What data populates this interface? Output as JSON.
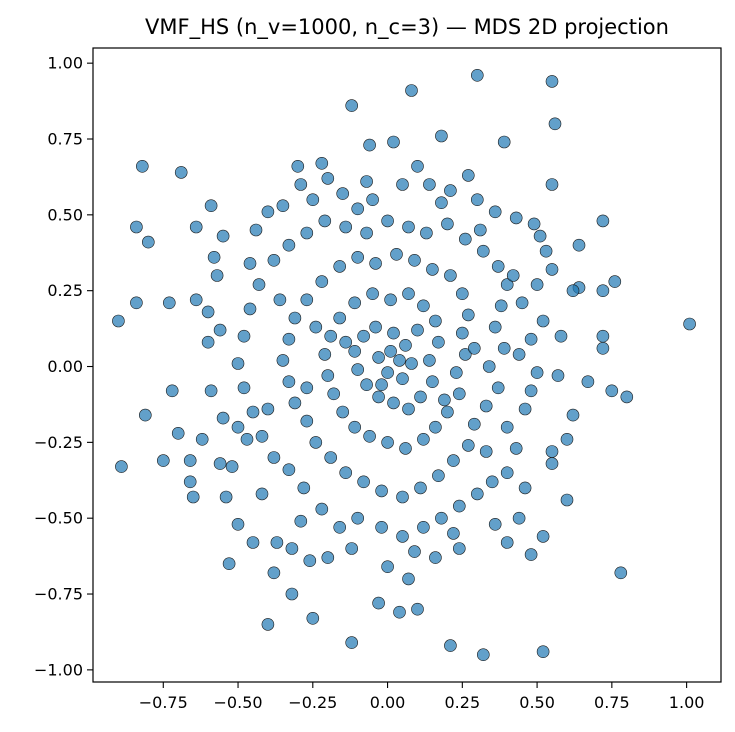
{
  "chart_data": {
    "type": "scatter",
    "title": "VMF_HS (n_v=1000, n_c=3) — MDS 2D projection",
    "xlabel": "",
    "ylabel": "",
    "xlim": [
      -0.985,
      1.115
    ],
    "ylim": [
      -1.04,
      1.05
    ],
    "xticks": [
      -0.75,
      -0.5,
      -0.25,
      0.0,
      0.25,
      0.5,
      0.75,
      1.0
    ],
    "xtick_labels": [
      "−0.75",
      "−0.50",
      "−0.25",
      "0.00",
      "0.25",
      "0.50",
      "0.75",
      "1.00"
    ],
    "yticks": [
      -1.0,
      -0.75,
      -0.5,
      -0.25,
      0.0,
      0.25,
      0.5,
      0.75,
      1.0
    ],
    "ytick_labels": [
      "−1.00",
      "−0.75",
      "−0.50",
      "−0.25",
      "0.00",
      "0.25",
      "0.50",
      "0.75",
      "1.00"
    ],
    "grid": false,
    "legend": "none",
    "marker_color": "#1f77b4",
    "points": [
      [
        0.3,
        0.96
      ],
      [
        0.55,
        0.94
      ],
      [
        0.08,
        0.91
      ],
      [
        -0.12,
        0.86
      ],
      [
        0.56,
        0.8
      ],
      [
        -0.82,
        0.66
      ],
      [
        -0.69,
        0.64
      ],
      [
        0.18,
        0.76
      ],
      [
        0.39,
        0.74
      ],
      [
        -0.06,
        0.73
      ],
      [
        0.02,
        0.74
      ],
      [
        0.72,
        0.48
      ],
      [
        -0.3,
        0.66
      ],
      [
        -0.22,
        0.67
      ],
      [
        -0.59,
        0.53
      ],
      [
        -0.84,
        0.46
      ],
      [
        -0.8,
        0.41
      ],
      [
        0.55,
        0.6
      ],
      [
        -0.9,
        0.15
      ],
      [
        -0.84,
        0.21
      ],
      [
        -0.73,
        0.21
      ],
      [
        -0.64,
        0.22
      ],
      [
        -0.89,
        -0.33
      ],
      [
        -0.81,
        -0.16
      ],
      [
        -0.72,
        -0.08
      ],
      [
        -0.7,
        -0.22
      ],
      [
        -0.75,
        -0.31
      ],
      [
        -0.65,
        -0.43
      ],
      [
        -0.66,
        -0.31
      ],
      [
        -0.56,
        -0.32
      ],
      [
        -0.54,
        -0.43
      ],
      [
        -0.53,
        -0.65
      ],
      [
        -0.4,
        -0.85
      ],
      [
        -0.32,
        -0.75
      ],
      [
        -0.25,
        -0.83
      ],
      [
        -0.12,
        -0.91
      ],
      [
        -0.03,
        -0.78
      ],
      [
        0.04,
        -0.81
      ],
      [
        0.1,
        -0.8
      ],
      [
        0.21,
        -0.92
      ],
      [
        0.32,
        -0.95
      ],
      [
        0.52,
        -0.94
      ],
      [
        0.78,
        -0.68
      ],
      [
        0.52,
        -0.56
      ],
      [
        0.6,
        -0.44
      ],
      [
        0.75,
        -0.08
      ],
      [
        0.8,
        -0.1
      ],
      [
        0.76,
        0.28
      ],
      [
        1.01,
        0.14
      ],
      [
        0.72,
        0.25
      ],
      [
        0.72,
        0.1
      ],
      [
        0.72,
        0.06
      ],
      [
        0.64,
        0.26
      ],
      [
        0.62,
        0.25
      ],
      [
        0.57,
        -0.03
      ],
      [
        0.62,
        -0.16
      ],
      [
        0.55,
        -0.28
      ],
      [
        0.55,
        -0.32
      ],
      [
        0.48,
        -0.62
      ],
      [
        0.44,
        -0.5
      ],
      [
        0.36,
        -0.52
      ],
      [
        0.24,
        -0.6
      ],
      [
        0.16,
        -0.63
      ],
      [
        0.07,
        -0.7
      ],
      [
        0.0,
        -0.66
      ],
      [
        -0.12,
        -0.6
      ],
      [
        -0.2,
        -0.63
      ],
      [
        -0.26,
        -0.64
      ],
      [
        -0.32,
        -0.6
      ],
      [
        -0.38,
        -0.68
      ],
      [
        -0.45,
        -0.58
      ],
      [
        -0.5,
        -0.52
      ],
      [
        -0.42,
        -0.42
      ],
      [
        -0.47,
        -0.24
      ],
      [
        -0.5,
        -0.2
      ],
      [
        -0.55,
        -0.17
      ],
      [
        -0.59,
        -0.08
      ],
      [
        -0.6,
        0.08
      ],
      [
        -0.6,
        0.18
      ],
      [
        -0.57,
        0.3
      ],
      [
        -0.58,
        0.36
      ],
      [
        -0.55,
        0.43
      ],
      [
        -0.44,
        0.45
      ],
      [
        -0.4,
        0.51
      ],
      [
        -0.35,
        0.53
      ],
      [
        -0.29,
        0.6
      ],
      [
        -0.25,
        0.55
      ],
      [
        -0.15,
        0.57
      ],
      [
        -0.1,
        0.52
      ],
      [
        -0.05,
        0.55
      ],
      [
        0.05,
        0.6
      ],
      [
        0.1,
        0.66
      ],
      [
        0.14,
        0.6
      ],
      [
        0.21,
        0.58
      ],
      [
        0.27,
        0.63
      ],
      [
        0.3,
        0.55
      ],
      [
        0.36,
        0.51
      ],
      [
        0.43,
        0.49
      ],
      [
        0.49,
        0.47
      ],
      [
        0.51,
        0.43
      ],
      [
        0.55,
        0.32
      ],
      [
        0.5,
        0.27
      ],
      [
        0.45,
        0.21
      ],
      [
        0.52,
        0.15
      ],
      [
        0.48,
        0.09
      ],
      [
        0.44,
        0.04
      ],
      [
        0.5,
        -0.02
      ],
      [
        0.48,
        -0.08
      ],
      [
        0.46,
        -0.14
      ],
      [
        0.4,
        -0.2
      ],
      [
        0.43,
        -0.27
      ],
      [
        0.4,
        -0.35
      ],
      [
        0.35,
        -0.38
      ],
      [
        0.3,
        -0.42
      ],
      [
        0.24,
        -0.46
      ],
      [
        0.18,
        -0.5
      ],
      [
        0.12,
        -0.53
      ],
      [
        0.05,
        -0.56
      ],
      [
        -0.02,
        -0.53
      ],
      [
        -0.1,
        -0.5
      ],
      [
        -0.16,
        -0.53
      ],
      [
        -0.22,
        -0.47
      ],
      [
        -0.28,
        -0.4
      ],
      [
        -0.33,
        -0.34
      ],
      [
        -0.38,
        -0.3
      ],
      [
        -0.42,
        -0.23
      ],
      [
        -0.45,
        -0.15
      ],
      [
        -0.48,
        -0.07
      ],
      [
        -0.5,
        0.01
      ],
      [
        -0.48,
        0.1
      ],
      [
        -0.46,
        0.19
      ],
      [
        -0.43,
        0.27
      ],
      [
        -0.38,
        0.35
      ],
      [
        -0.33,
        0.4
      ],
      [
        -0.27,
        0.44
      ],
      [
        -0.21,
        0.48
      ],
      [
        -0.14,
        0.46
      ],
      [
        -0.07,
        0.44
      ],
      [
        0.0,
        0.48
      ],
      [
        0.07,
        0.46
      ],
      [
        0.13,
        0.44
      ],
      [
        0.2,
        0.47
      ],
      [
        0.26,
        0.42
      ],
      [
        0.32,
        0.38
      ],
      [
        0.37,
        0.33
      ],
      [
        0.4,
        0.27
      ],
      [
        0.38,
        0.2
      ],
      [
        0.36,
        0.13
      ],
      [
        0.39,
        0.06
      ],
      [
        0.34,
        0.0
      ],
      [
        0.37,
        -0.07
      ],
      [
        0.33,
        -0.13
      ],
      [
        0.29,
        -0.19
      ],
      [
        0.27,
        -0.26
      ],
      [
        0.22,
        -0.31
      ],
      [
        0.17,
        -0.36
      ],
      [
        0.11,
        -0.4
      ],
      [
        0.05,
        -0.43
      ],
      [
        -0.02,
        -0.41
      ],
      [
        -0.08,
        -0.38
      ],
      [
        -0.14,
        -0.35
      ],
      [
        -0.19,
        -0.3
      ],
      [
        -0.24,
        -0.25
      ],
      [
        -0.27,
        -0.18
      ],
      [
        -0.31,
        -0.12
      ],
      [
        -0.33,
        -0.05
      ],
      [
        -0.35,
        0.02
      ],
      [
        -0.33,
        0.09
      ],
      [
        -0.31,
        0.16
      ],
      [
        -0.27,
        0.22
      ],
      [
        -0.22,
        0.28
      ],
      [
        -0.16,
        0.33
      ],
      [
        -0.1,
        0.36
      ],
      [
        -0.04,
        0.34
      ],
      [
        0.03,
        0.37
      ],
      [
        0.09,
        0.35
      ],
      [
        0.15,
        0.32
      ],
      [
        0.21,
        0.3
      ],
      [
        0.25,
        0.24
      ],
      [
        0.27,
        0.17
      ],
      [
        0.25,
        0.11
      ],
      [
        0.26,
        0.04
      ],
      [
        0.23,
        -0.02
      ],
      [
        0.24,
        -0.09
      ],
      [
        0.2,
        -0.15
      ],
      [
        0.16,
        -0.2
      ],
      [
        0.12,
        -0.24
      ],
      [
        0.06,
        -0.27
      ],
      [
        0.0,
        -0.25
      ],
      [
        -0.06,
        -0.23
      ],
      [
        -0.11,
        -0.2
      ],
      [
        -0.15,
        -0.15
      ],
      [
        -0.18,
        -0.09
      ],
      [
        -0.2,
        -0.03
      ],
      [
        -0.21,
        0.04
      ],
      [
        -0.19,
        0.1
      ],
      [
        -0.16,
        0.16
      ],
      [
        -0.11,
        0.21
      ],
      [
        -0.05,
        0.24
      ],
      [
        0.01,
        0.22
      ],
      [
        0.07,
        0.24
      ],
      [
        0.12,
        0.2
      ],
      [
        0.16,
        0.15
      ],
      [
        0.17,
        0.08
      ],
      [
        0.14,
        0.02
      ],
      [
        0.15,
        -0.05
      ],
      [
        0.11,
        -0.1
      ],
      [
        0.07,
        -0.14
      ],
      [
        0.02,
        -0.12
      ],
      [
        -0.03,
        -0.1
      ],
      [
        -0.07,
        -0.06
      ],
      [
        -0.1,
        -0.01
      ],
      [
        -0.11,
        0.05
      ],
      [
        -0.08,
        0.1
      ],
      [
        -0.04,
        0.13
      ],
      [
        0.02,
        0.11
      ],
      [
        0.06,
        0.07
      ],
      [
        0.08,
        0.01
      ],
      [
        0.05,
        -0.04
      ],
      [
        0.0,
        -0.02
      ],
      [
        -0.03,
        0.03
      ],
      [
        0.01,
        0.05
      ],
      [
        0.04,
        0.02
      ],
      [
        -0.02,
        -0.06
      ],
      [
        0.1,
        0.12
      ],
      [
        -0.14,
        0.08
      ],
      [
        0.19,
        -0.11
      ],
      [
        -0.24,
        0.13
      ],
      [
        0.29,
        0.06
      ],
      [
        -0.27,
        -0.07
      ],
      [
        0.33,
        -0.28
      ],
      [
        -0.36,
        0.22
      ],
      [
        0.42,
        0.3
      ],
      [
        -0.4,
        -0.14
      ],
      [
        0.46,
        -0.4
      ],
      [
        -0.46,
        0.34
      ],
      [
        0.31,
        0.45
      ],
      [
        -0.29,
        -0.51
      ],
      [
        0.18,
        0.54
      ],
      [
        -0.2,
        0.62
      ],
      [
        0.09,
        -0.61
      ],
      [
        -0.07,
        0.61
      ],
      [
        0.22,
        -0.55
      ],
      [
        -0.37,
        -0.58
      ],
      [
        0.4,
        -0.58
      ],
      [
        -0.52,
        -0.33
      ],
      [
        0.53,
        0.38
      ],
      [
        -0.56,
        0.12
      ],
      [
        0.58,
        0.1
      ],
      [
        -0.62,
        -0.24
      ],
      [
        0.6,
        -0.24
      ],
      [
        -0.64,
        0.46
      ],
      [
        0.67,
        -0.05
      ],
      [
        -0.66,
        -0.38
      ],
      [
        0.64,
        0.4
      ]
    ]
  }
}
